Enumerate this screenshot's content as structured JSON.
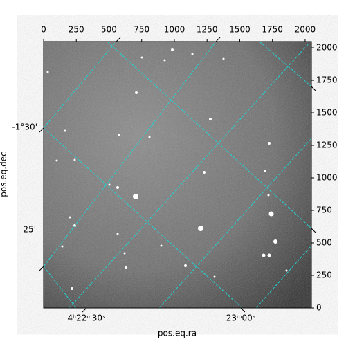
{
  "chart_data": {
    "type": "image",
    "xlabel": "pos.eq.ra",
    "ylabel": "pos.eq.dec",
    "xlim": [
      0,
      2048
    ],
    "ylim": [
      0,
      2048
    ],
    "xticks": [
      0,
      250,
      500,
      750,
      1000,
      1250,
      1500,
      1750,
      2000
    ],
    "yticks": [
      0,
      250,
      500,
      750,
      1000,
      1250,
      1500,
      1750,
      2000
    ],
    "ra_ticks": [
      "4ʰ22ᵐ30ˢ",
      "23ᵐ00ˢ"
    ],
    "dec_ticks": [
      "-1°30'",
      "25'"
    ],
    "grid_color": "#22d3d3"
  }
}
